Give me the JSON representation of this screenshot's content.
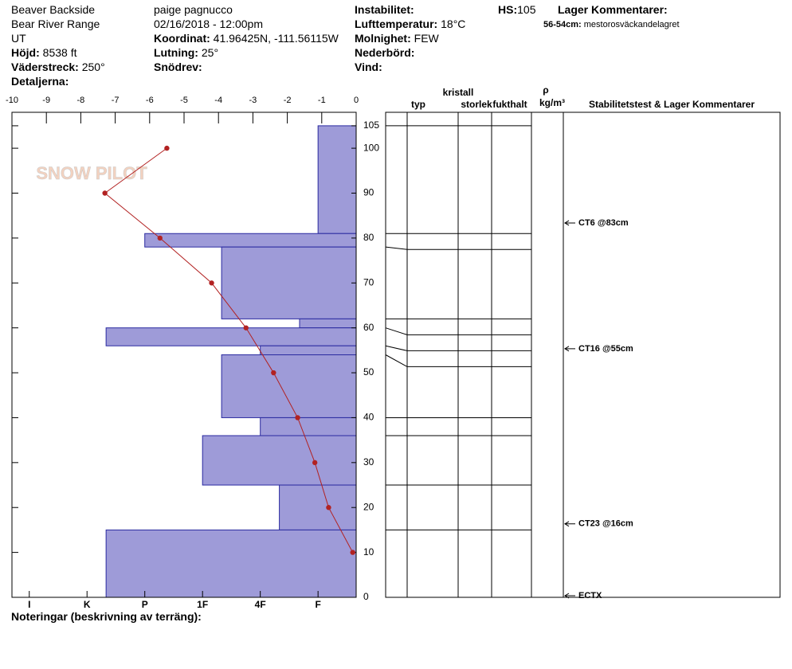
{
  "location": {
    "name": "Beaver Backside",
    "range": "Bear River Range",
    "state": "UT",
    "elevation_label": "Höjd:",
    "elevation": "8538 ft",
    "aspect_label": "Väderstreck:",
    "aspect": "250°",
    "details_label": "Detaljerna:"
  },
  "observer": {
    "name": "paige pagnucco",
    "datetime": "02/16/2018 - 12:00pm",
    "coord_label": "Koordinat:",
    "coord": "41.96425N, -111.56115W",
    "slope_label": "Lutning:",
    "slope": "25°",
    "wind_loading_label": "Snödrev:"
  },
  "conditions": {
    "instability_label": "Instabilitet:",
    "air_temp_label": "Lufttemperatur:",
    "air_temp": "18°C",
    "sky_label": "Molnighet:",
    "sky": "FEW",
    "precip_label": "Nederbörd:",
    "wind_label": "Vind:"
  },
  "hs": {
    "label": "HS:",
    "value": 105
  },
  "layer_comments": {
    "title": "Lager Kommentarer:",
    "items": [
      {
        "range": "56-54cm:",
        "text": "mestorosväckandelagret"
      }
    ]
  },
  "notes_label": "Noteringar (beskrivning av terräng):",
  "logo": "SNOW PILOT",
  "chart_data": {
    "type": "snowprofile",
    "temp_lim": [
      -10,
      0
    ],
    "temp_ticks": [
      -10,
      -9,
      -8,
      -7,
      -6,
      -5,
      -4,
      -3,
      -2,
      -1,
      0
    ],
    "depth_lim": [
      0,
      108
    ],
    "depth_ticks": [
      0,
      10,
      20,
      30,
      40,
      50,
      60,
      70,
      80,
      90,
      100,
      105
    ],
    "hardness_lim": [
      0.34,
      6.3
    ],
    "hardness_ticks": [
      {
        "value": 6,
        "label": "I"
      },
      {
        "value": 5,
        "label": "K"
      },
      {
        "value": 4,
        "label": "P"
      },
      {
        "value": 3,
        "label": "1F"
      },
      {
        "value": 2,
        "label": "4F"
      },
      {
        "value": 1,
        "label": "F"
      }
    ],
    "layers": {
      "color": "#9e9bd8",
      "top": [
        105,
        81,
        78,
        62,
        60,
        56,
        54,
        40,
        36,
        25,
        15
      ],
      "bottom": [
        81,
        78,
        62,
        60,
        56,
        54,
        40,
        36,
        25,
        15,
        0
      ],
      "hardness": [
        1,
        4,
        2.67,
        1.32,
        4.67,
        2,
        2.67,
        2,
        3,
        1.67,
        4.67
      ]
    },
    "temperature": {
      "color": "#b22222",
      "depth": [
        100,
        90,
        80,
        70,
        60,
        50,
        40,
        30,
        20,
        10
      ],
      "values": [
        -5.5,
        -7.3,
        -5.7,
        -4.2,
        -3.2,
        -2.4,
        -1.7,
        -1.2,
        -0.8,
        -0.1
      ]
    },
    "table_headers": {
      "type": "typ",
      "crystal": "kristall",
      "size": "storlek",
      "moisture": "fukthalt",
      "rho": "ρ",
      "density_unit": "kg/m³",
      "comments": "Stabilitetstest & Lager Kommentarer"
    },
    "tests": {
      "labels": [
        "CT6 @83cm",
        "CT16 @55cm",
        "CT23 @16cm",
        "ECTX"
      ],
      "depth": [
        83,
        55,
        16,
        0
      ]
    }
  }
}
